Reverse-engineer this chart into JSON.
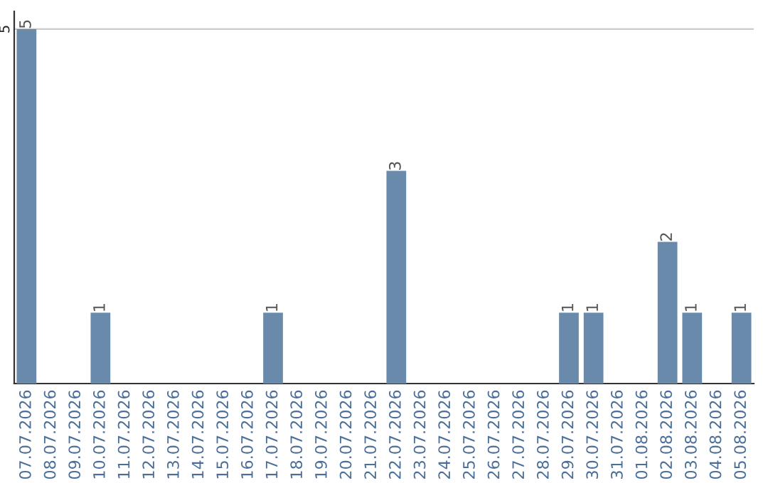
{
  "chart_data": {
    "type": "bar",
    "categories": [
      "07.07.2026",
      "08.07.2026",
      "09.07.2026",
      "10.07.2026",
      "11.07.2026",
      "12.07.2026",
      "13.07.2026",
      "14.07.2026",
      "15.07.2026",
      "16.07.2026",
      "17.07.2026",
      "18.07.2026",
      "19.07.2026",
      "20.07.2026",
      "21.07.2026",
      "22.07.2026",
      "23.07.2026",
      "24.07.2026",
      "25.07.2026",
      "26.07.2026",
      "27.07.2026",
      "28.07.2026",
      "29.07.2026",
      "30.07.2026",
      "31.07.2026",
      "01.08.2026",
      "02.08.2026",
      "03.08.2026",
      "04.08.2026",
      "05.08.2026"
    ],
    "values": [
      5,
      0,
      0,
      1,
      0,
      0,
      0,
      0,
      0,
      0,
      1,
      0,
      0,
      0,
      0,
      3,
      0,
      0,
      0,
      0,
      0,
      0,
      1,
      1,
      0,
      0,
      2,
      1,
      0,
      1
    ],
    "value_labels": [
      "5",
      null,
      null,
      "1",
      null,
      null,
      null,
      null,
      null,
      null,
      "1",
      null,
      null,
      null,
      null,
      "3",
      null,
      null,
      null,
      null,
      null,
      null,
      "1",
      "1",
      null,
      null,
      "2",
      "1",
      null,
      "1"
    ],
    "color": "#6a8aab",
    "ylim": [
      0,
      5.25
    ],
    "yticks": [
      5
    ],
    "grid": "y"
  }
}
